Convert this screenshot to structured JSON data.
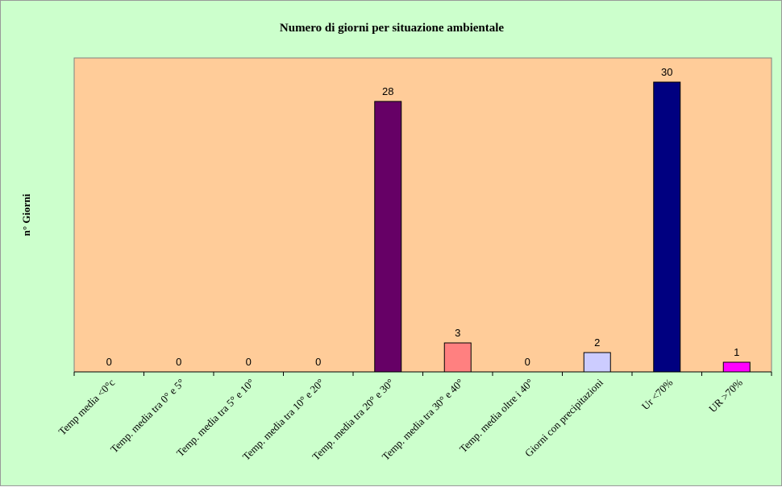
{
  "chart_data": {
    "type": "bar",
    "title": "Numero di giorni per situazione ambientale",
    "ylabel": "n° Giorni",
    "xlabel": "",
    "categories": [
      "Temp media <0°c",
      "Temp. media tra 0° e 5°",
      "Temp. media tra 5° e 10°",
      "Temp. media tra 10° e 20°",
      "Temp. media tra 20° e 30°",
      "Temp. media tra 30° e 40°",
      "Temp. media oltre i 40°",
      "Giorni con precipitazioni",
      "Ur <70%",
      "UR >70%"
    ],
    "values": [
      0,
      0,
      0,
      0,
      28,
      3,
      0,
      2,
      30,
      1
    ],
    "data_labels": [
      "0",
      "0",
      "0",
      "0",
      "28",
      "3",
      "0",
      "2",
      "30",
      "1"
    ],
    "bar_colors": [
      "#660066",
      "#660066",
      "#660066",
      "#660066",
      "#660066",
      "#ff8080",
      "#660066",
      "#ccccff",
      "#000080",
      "#ff00ff"
    ],
    "ylim": [
      0,
      31
    ],
    "grid": false,
    "legend": "none",
    "colors": {
      "background": "#ccffcc",
      "plot_area": "#ffcc99"
    }
  }
}
